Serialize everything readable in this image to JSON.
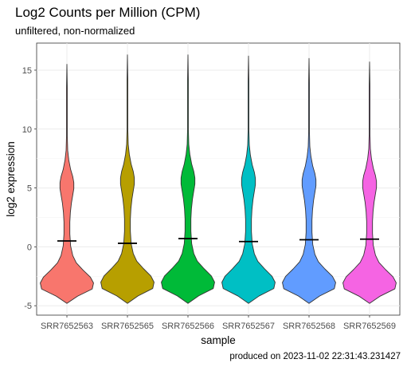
{
  "chart_data": {
    "type": "violin",
    "title": "Log2 Counts per Million (CPM)",
    "subtitle": "unfiltered, non-normalized",
    "xlabel": "sample",
    "ylabel": "log2 expression",
    "caption": "produced on 2023-11-02 22:31:43.231427",
    "ylim": [
      -5.8,
      17.3
    ],
    "yticks": [
      -5,
      0,
      5,
      10,
      15
    ],
    "grid": true,
    "legend": "none",
    "categories": [
      "SRR7652563",
      "SRR7652565",
      "SRR7652566",
      "SRR7652567",
      "SRR7652568",
      "SRR7652569"
    ],
    "series": [
      {
        "category": "SRR7652563",
        "color": "#F8766D",
        "min": -4.8,
        "max": 15.5,
        "median": 0.5
      },
      {
        "category": "SRR7652565",
        "color": "#B79F00",
        "min": -4.8,
        "max": 16.3,
        "median": 0.3
      },
      {
        "category": "SRR7652566",
        "color": "#00BA38",
        "min": -4.8,
        "max": 16.3,
        "median": 0.7
      },
      {
        "category": "SRR7652567",
        "color": "#00BFC4",
        "min": -4.8,
        "max": 16.2,
        "median": 0.45
      },
      {
        "category": "SRR7652568",
        "color": "#619CFF",
        "min": -4.8,
        "max": 16.0,
        "median": 0.6
      },
      {
        "category": "SRR7652569",
        "color": "#F564E3",
        "min": -4.8,
        "max": 15.7,
        "median": 0.65
      }
    ]
  }
}
